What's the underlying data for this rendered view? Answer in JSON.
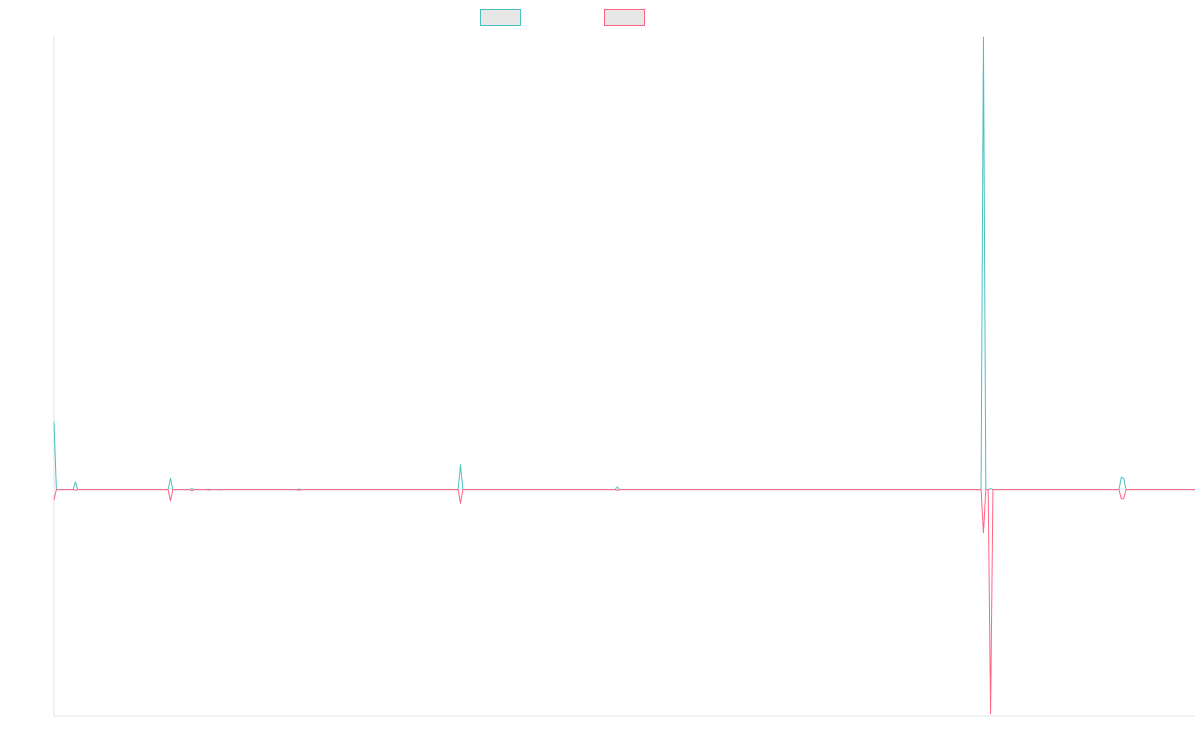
{
  "chart_data": {
    "type": "line",
    "title": "",
    "xlabel": "",
    "ylabel": "",
    "grid": false,
    "legend_position": "top-center",
    "ylim": [
      -100,
      200
    ],
    "series": [
      {
        "name": "",
        "color": "#4bc0c0",
        "legend_fill": "#e7e7e7",
        "points": [
          [
            0,
            30
          ],
          [
            1,
            0
          ],
          [
            8,
            0
          ],
          [
            9,
            3.5
          ],
          [
            10,
            0
          ],
          [
            48,
            0
          ],
          [
            49,
            5
          ],
          [
            50,
            0
          ],
          [
            57,
            0
          ],
          [
            58,
            0.5
          ],
          [
            59,
            0
          ],
          [
            64,
            0
          ],
          [
            65,
            0.2
          ],
          [
            66,
            0
          ],
          [
            69,
            0
          ],
          [
            70,
            0.1
          ],
          [
            71,
            0
          ],
          [
            102,
            0
          ],
          [
            103,
            0.3
          ],
          [
            104,
            0
          ],
          [
            170,
            0
          ],
          [
            171,
            11
          ],
          [
            172,
            0
          ],
          [
            236,
            0
          ],
          [
            237,
            1.2
          ],
          [
            238,
            0
          ],
          [
            390,
            0
          ],
          [
            391,
            200
          ],
          [
            392,
            0
          ],
          [
            393,
            0
          ],
          [
            394,
            0.5
          ],
          [
            395,
            0
          ],
          [
            448,
            0
          ],
          [
            449,
            5.5
          ],
          [
            450,
            5
          ],
          [
            451,
            0
          ],
          [
            480,
            0
          ]
        ]
      },
      {
        "name": "",
        "color": "#ff6384",
        "legend_fill": "#e7e7e7",
        "points": [
          [
            0,
            -4.5
          ],
          [
            1,
            0
          ],
          [
            8,
            0
          ],
          [
            9,
            -0.2
          ],
          [
            10,
            0
          ],
          [
            48,
            0
          ],
          [
            49,
            -5
          ],
          [
            50,
            0
          ],
          [
            57,
            0
          ],
          [
            58,
            -0.5
          ],
          [
            59,
            0
          ],
          [
            64,
            0
          ],
          [
            65,
            -0.2
          ],
          [
            66,
            0
          ],
          [
            69,
            0
          ],
          [
            70,
            -0.1
          ],
          [
            71,
            0
          ],
          [
            102,
            0
          ],
          [
            103,
            -0.3
          ],
          [
            104,
            0
          ],
          [
            170,
            0
          ],
          [
            171,
            -6
          ],
          [
            172,
            0
          ],
          [
            236,
            0
          ],
          [
            237,
            -0.3
          ],
          [
            238,
            0
          ],
          [
            390,
            0
          ],
          [
            391,
            -19
          ],
          [
            392,
            0
          ],
          [
            393,
            0
          ],
          [
            394,
            -99
          ],
          [
            395,
            0
          ],
          [
            448,
            0
          ],
          [
            449,
            -4
          ],
          [
            450,
            -4
          ],
          [
            451,
            0
          ],
          [
            480,
            0
          ]
        ]
      }
    ]
  }
}
